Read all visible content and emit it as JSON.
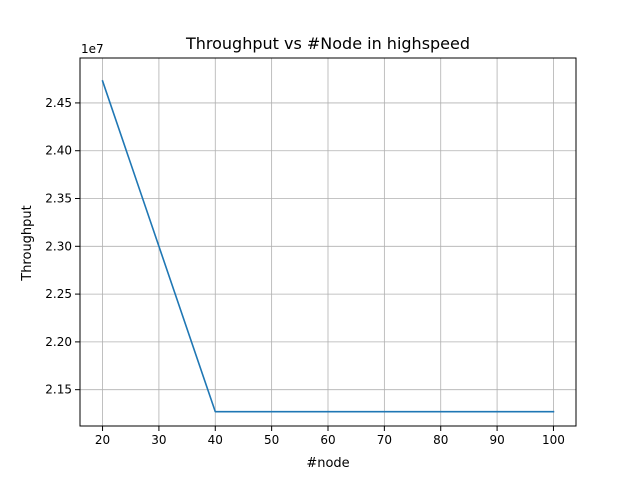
{
  "chart_data": {
    "type": "line",
    "title": "Throughput vs #Node in highspeed",
    "xlabel": "#node",
    "ylabel": "Throughput",
    "y_offset_label": "1e7",
    "y_scale_factor": 10000000,
    "xlim": [
      16,
      104
    ],
    "ylim": [
      21120000,
      24970000
    ],
    "x_ticks": [
      20,
      30,
      40,
      50,
      60,
      70,
      80,
      90,
      100
    ],
    "x_tick_labels": [
      "20",
      "30",
      "40",
      "50",
      "60",
      "70",
      "80",
      "90",
      "100"
    ],
    "y_ticks": [
      21500000,
      22000000,
      22500000,
      23000000,
      23500000,
      24000000,
      24500000
    ],
    "y_tick_labels": [
      "2.15",
      "2.20",
      "2.25",
      "2.30",
      "2.35",
      "2.40",
      "2.45"
    ],
    "grid": true,
    "series": [
      {
        "color": "#1f77b4",
        "x": [
          20,
          40,
          60,
          80,
          100
        ],
        "y": [
          24730000,
          21270000,
          21270000,
          21270000,
          21270000
        ]
      }
    ]
  }
}
